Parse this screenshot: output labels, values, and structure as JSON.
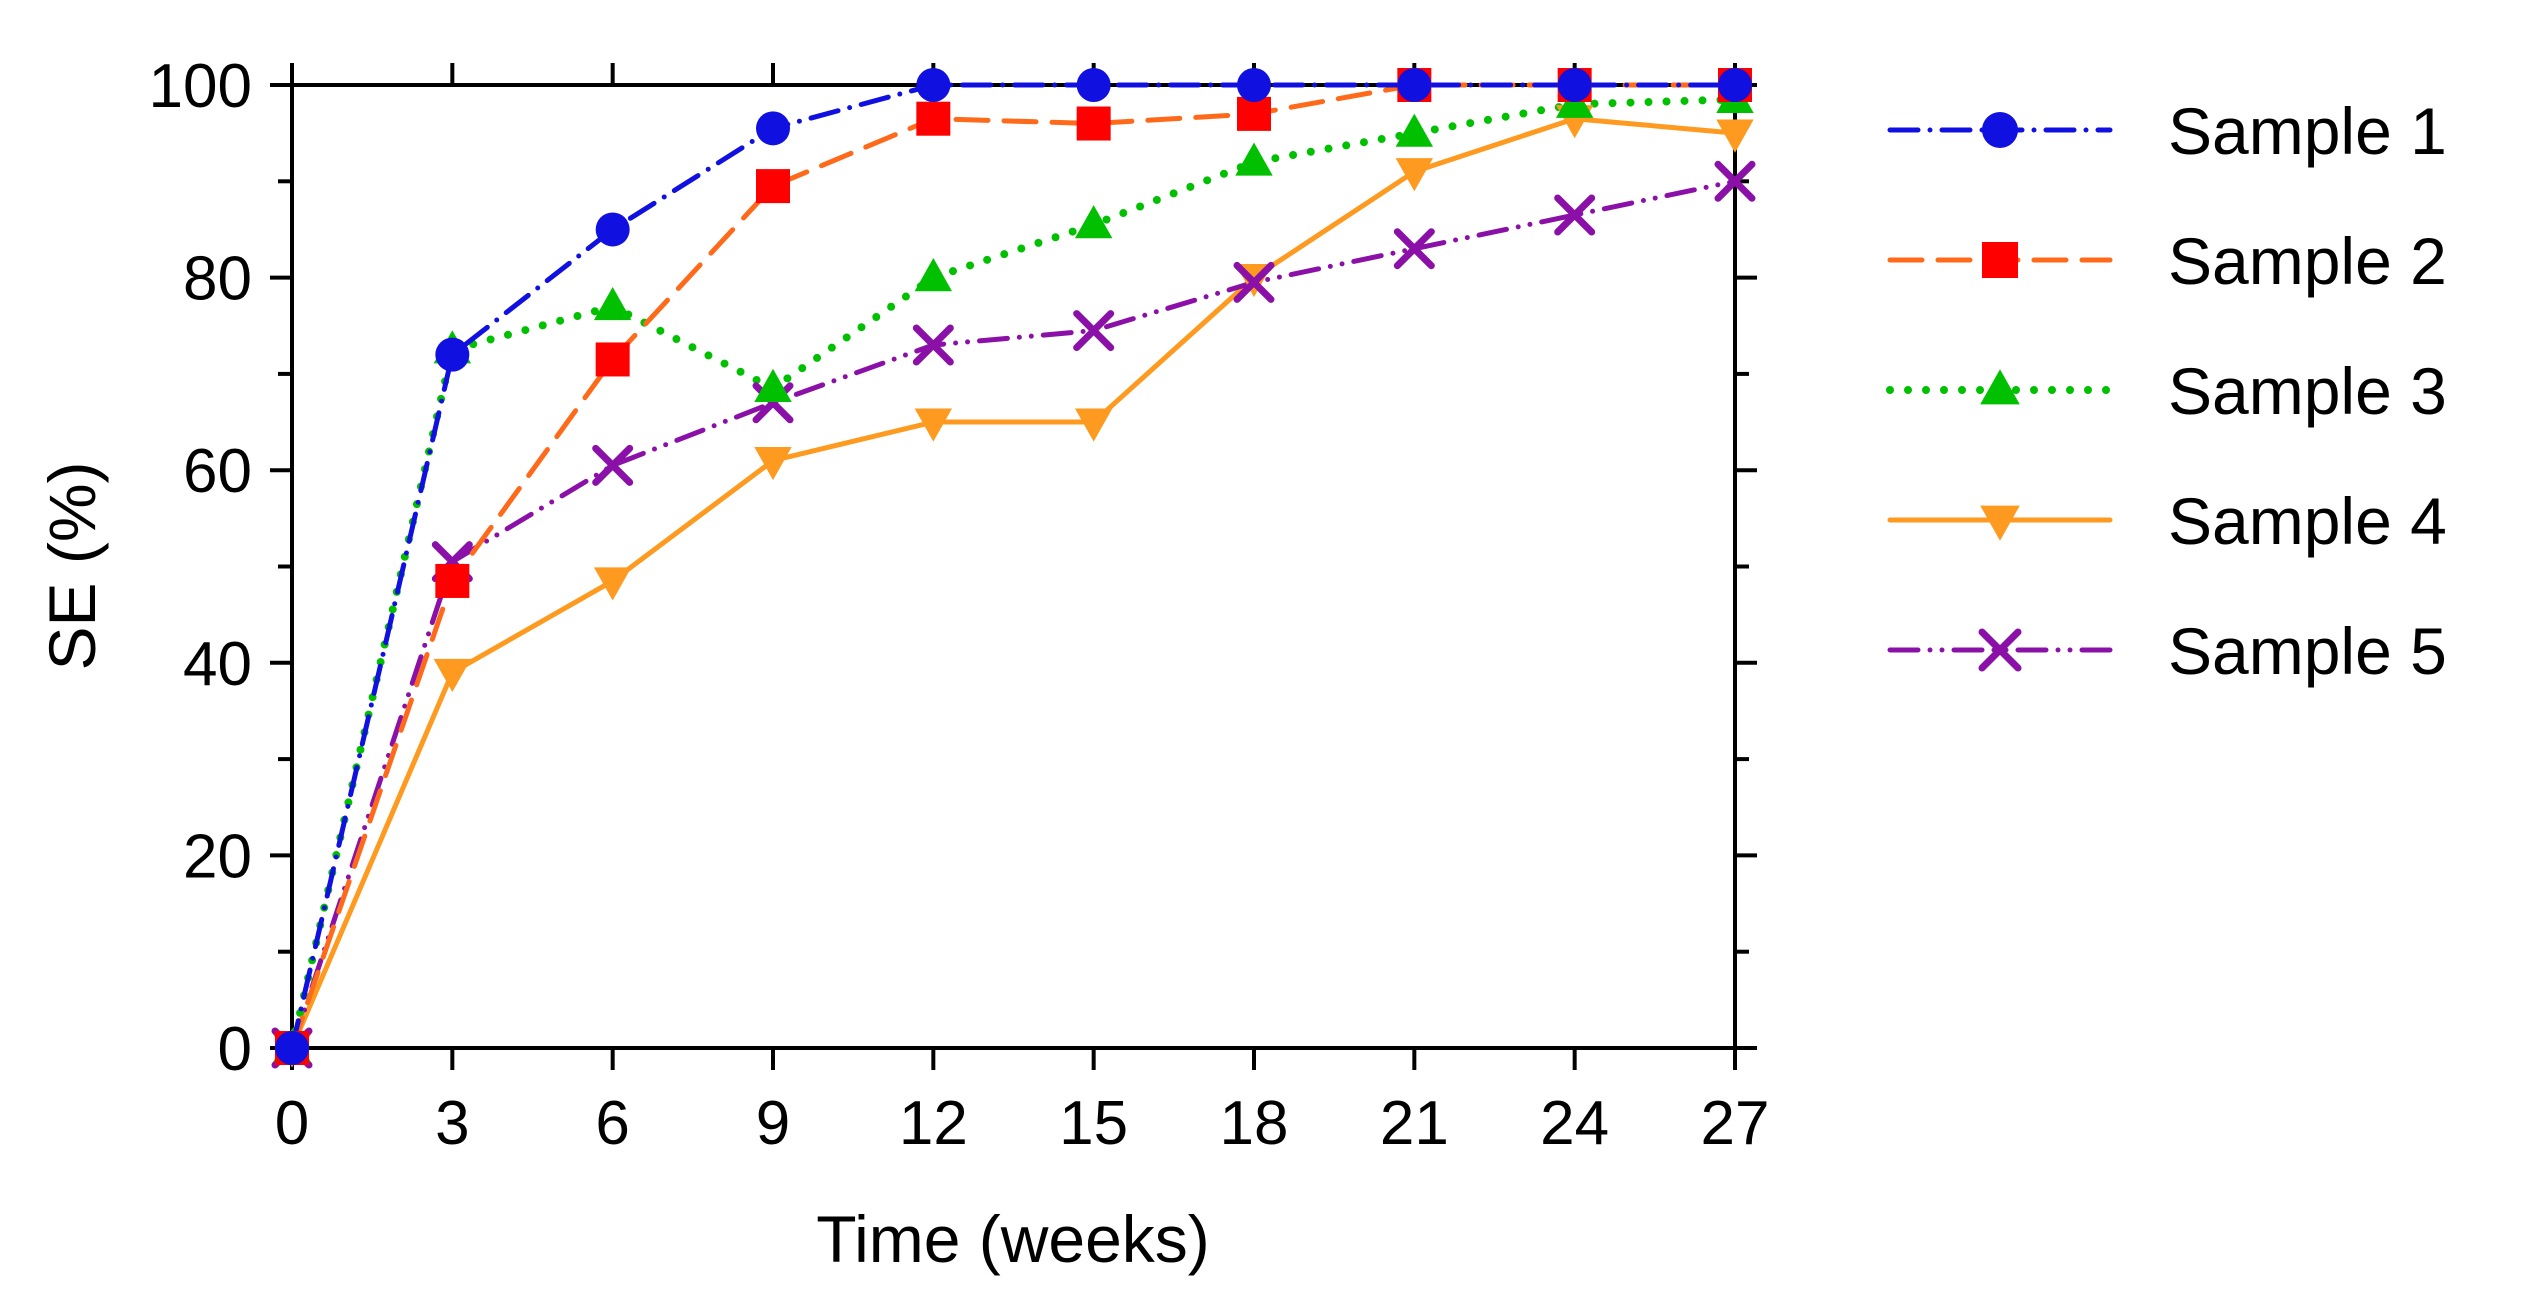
{
  "chart_data": {
    "type": "line",
    "xlabel": "Time (weeks)",
    "ylabel": "SE (%)",
    "xlim": [
      0,
      27
    ],
    "ylim": [
      0,
      100
    ],
    "x_ticks": [
      "0",
      "3",
      "6",
      "9",
      "12",
      "15",
      "18",
      "21",
      "24",
      "27"
    ],
    "y_ticks": [
      "0",
      "20",
      "40",
      "60",
      "80",
      "100"
    ],
    "grid": false,
    "legend_position": "right",
    "x": [
      0,
      3,
      6,
      9,
      12,
      15,
      18,
      21,
      24,
      27
    ],
    "series": [
      {
        "name": "Sample 1",
        "color": "#1010e0",
        "marker": "circle",
        "line_style": "dash-dot",
        "values": [
          0,
          72,
          85,
          95.5,
          100,
          100,
          100,
          100,
          100,
          100
        ]
      },
      {
        "name": "Sample 2",
        "color": "#ff6a1a",
        "marker": "square",
        "line_style": "dashed",
        "values": [
          0,
          48.5,
          71.5,
          89.5,
          96.5,
          96,
          97,
          100,
          100,
          100
        ]
      },
      {
        "name": "Sample 3",
        "color": "#00c000",
        "marker": "triangle-up",
        "line_style": "dotted",
        "values": [
          0,
          72.5,
          77,
          68.5,
          80,
          85.5,
          92,
          95,
          98,
          98.5
        ]
      },
      {
        "name": "Sample 4",
        "color": "#ff9a20",
        "marker": "triangle-down",
        "line_style": "solid",
        "values": [
          0,
          39,
          48.5,
          61,
          65,
          65,
          80,
          91,
          96.5,
          95
        ]
      },
      {
        "name": "Sample 5",
        "color": "#8a10a8",
        "marker": "x",
        "line_style": "dash-dot-dot",
        "values": [
          0,
          50.5,
          60.5,
          67,
          73,
          74.5,
          79.5,
          83,
          86.5,
          90
        ]
      }
    ]
  }
}
